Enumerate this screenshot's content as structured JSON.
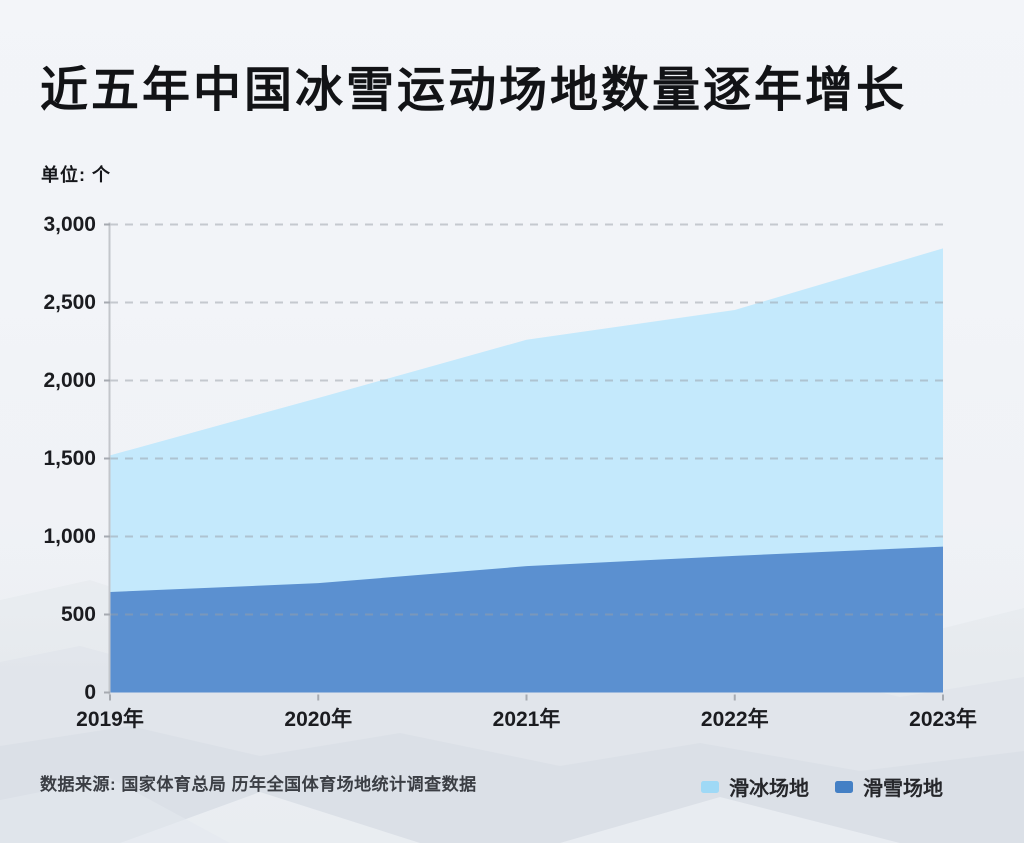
{
  "title": "近五年中国冰雪运动场地数量逐年增长",
  "unit_label": "单位: 个",
  "source": "数据来源: 国家体育总局 历年全国体育场地统计调查数据",
  "legend": [
    {
      "label": "滑冰场地",
      "color": "#9fd9f6"
    },
    {
      "label": "滑雪场地",
      "color": "#4480c5"
    }
  ],
  "chart_data": {
    "type": "area",
    "stacked": true,
    "title": "近五年中国冰雪运动场地数量逐年增长",
    "unit": "个",
    "categories": [
      "2019年",
      "2020年",
      "2021年",
      "2022年",
      "2023年"
    ],
    "series": [
      {
        "name": "滑冰场地",
        "values": [
          876,
          1187,
          1451,
          1576,
          1912
        ],
        "fill": "#c4e9fc"
      },
      {
        "name": "滑雪场地",
        "values": [
          644,
          701,
          810,
          876,
          935
        ],
        "fill": "#5b90d0"
      }
    ],
    "stack_totals": [
      1520,
      1888,
      2261,
      2452,
      2847
    ],
    "ylim": [
      0,
      3000
    ],
    "yticks": [
      0,
      500,
      1000,
      1500,
      2000,
      2500,
      3000
    ],
    "ytick_labels": [
      "0",
      "500",
      "1,000",
      "1,500",
      "2,000",
      "2,500",
      "3,000"
    ],
    "grid": "horizontal-dashed",
    "legend_position": "bottom-right",
    "source": "数据来源: 国家体育总局 历年全国体育场地统计调查数据"
  }
}
